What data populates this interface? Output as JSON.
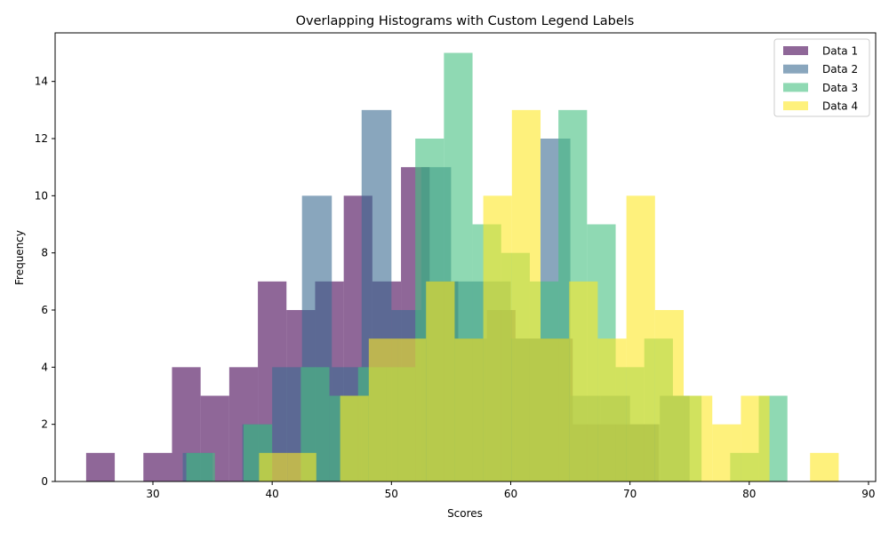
{
  "chart_data": {
    "type": "bar",
    "title": "Overlapping Histograms with Custom Legend Labels",
    "xlabel": "Scores",
    "ylabel": "Frequency",
    "xlim": [
      21.8,
      90.6
    ],
    "ylim": [
      0,
      15.7
    ],
    "xticks": [
      30,
      40,
      50,
      60,
      70,
      80,
      90
    ],
    "yticks": [
      0,
      2,
      4,
      6,
      8,
      10,
      12,
      14
    ],
    "legend_position": "top-right",
    "bar_alpha": 0.6,
    "series": [
      {
        "name": "Data 1",
        "color": "#440154",
        "bins": [
          {
            "x0": 24.4,
            "x1": 26.8,
            "y": 1
          },
          {
            "x0": 29.2,
            "x1": 31.6,
            "y": 1
          },
          {
            "x0": 31.6,
            "x1": 34.0,
            "y": 4
          },
          {
            "x0": 34.0,
            "x1": 36.4,
            "y": 3
          },
          {
            "x0": 36.4,
            "x1": 38.8,
            "y": 4
          },
          {
            "x0": 38.8,
            "x1": 41.2,
            "y": 7
          },
          {
            "x0": 41.2,
            "x1": 43.6,
            "y": 6
          },
          {
            "x0": 43.6,
            "x1": 46.0,
            "y": 7
          },
          {
            "x0": 46.0,
            "x1": 48.4,
            "y": 10
          },
          {
            "x0": 48.4,
            "x1": 50.8,
            "y": 7
          },
          {
            "x0": 50.8,
            "x1": 53.2,
            "y": 11
          },
          {
            "x0": 53.2,
            "x1": 55.6,
            "y": 7
          },
          {
            "x0": 55.6,
            "x1": 58.0,
            "y": 5
          },
          {
            "x0": 58.0,
            "x1": 60.4,
            "y": 6
          },
          {
            "x0": 60.4,
            "x1": 62.8,
            "y": 5
          },
          {
            "x0": 62.8,
            "x1": 65.2,
            "y": 5
          },
          {
            "x0": 65.2,
            "x1": 67.6,
            "y": 2
          },
          {
            "x0": 67.6,
            "x1": 70.0,
            "y": 2
          },
          {
            "x0": 70.0,
            "x1": 72.4,
            "y": 2
          }
        ]
      },
      {
        "name": "Data 2",
        "color": "#3b6b91",
        "bins": [
          {
            "x0": 32.5,
            "x1": 35.0,
            "y": 1
          },
          {
            "x0": 37.5,
            "x1": 40.0,
            "y": 2
          },
          {
            "x0": 40.0,
            "x1": 42.5,
            "y": 4
          },
          {
            "x0": 42.5,
            "x1": 45.0,
            "y": 10
          },
          {
            "x0": 45.0,
            "x1": 47.5,
            "y": 4
          },
          {
            "x0": 47.5,
            "x1": 50.0,
            "y": 13
          },
          {
            "x0": 50.0,
            "x1": 52.5,
            "y": 6
          },
          {
            "x0": 52.5,
            "x1": 55.0,
            "y": 11
          },
          {
            "x0": 55.0,
            "x1": 57.5,
            "y": 7
          },
          {
            "x0": 57.5,
            "x1": 60.0,
            "y": 7
          },
          {
            "x0": 60.0,
            "x1": 62.5,
            "y": 5
          },
          {
            "x0": 62.5,
            "x1": 65.0,
            "y": 12
          },
          {
            "x0": 65.0,
            "x1": 67.5,
            "y": 3
          },
          {
            "x0": 67.5,
            "x1": 70.0,
            "y": 3
          },
          {
            "x0": 70.0,
            "x1": 72.5,
            "y": 2
          },
          {
            "x0": 72.5,
            "x1": 75.0,
            "y": 3
          }
        ]
      },
      {
        "name": "Data 3",
        "color": "#44bf80",
        "bins": [
          {
            "x0": 32.8,
            "x1": 35.2,
            "y": 1
          },
          {
            "x0": 37.6,
            "x1": 40.0,
            "y": 2
          },
          {
            "x0": 42.4,
            "x1": 44.8,
            "y": 4
          },
          {
            "x0": 44.8,
            "x1": 47.2,
            "y": 3
          },
          {
            "x0": 47.2,
            "x1": 49.6,
            "y": 4
          },
          {
            "x0": 49.6,
            "x1": 52.0,
            "y": 4
          },
          {
            "x0": 52.0,
            "x1": 54.4,
            "y": 12
          },
          {
            "x0": 54.4,
            "x1": 56.8,
            "y": 15
          },
          {
            "x0": 56.8,
            "x1": 59.2,
            "y": 9
          },
          {
            "x0": 59.2,
            "x1": 61.6,
            "y": 8
          },
          {
            "x0": 61.6,
            "x1": 64.0,
            "y": 7
          },
          {
            "x0": 64.0,
            "x1": 66.4,
            "y": 13
          },
          {
            "x0": 66.4,
            "x1": 68.8,
            "y": 9
          },
          {
            "x0": 68.8,
            "x1": 71.2,
            "y": 4
          },
          {
            "x0": 71.2,
            "x1": 73.6,
            "y": 5
          },
          {
            "x0": 73.6,
            "x1": 76.0,
            "y": 3
          },
          {
            "x0": 78.4,
            "x1": 80.8,
            "y": 1
          },
          {
            "x0": 80.8,
            "x1": 83.2,
            "y": 3
          }
        ]
      },
      {
        "name": "Data 4",
        "color": "#fde725",
        "bins": [
          {
            "x0": 38.9,
            "x1": 41.3,
            "y": 1
          },
          {
            "x0": 41.3,
            "x1": 43.7,
            "y": 1
          },
          {
            "x0": 45.7,
            "x1": 48.1,
            "y": 3
          },
          {
            "x0": 48.1,
            "x1": 50.5,
            "y": 5
          },
          {
            "x0": 50.5,
            "x1": 52.9,
            "y": 5
          },
          {
            "x0": 52.9,
            "x1": 55.3,
            "y": 7
          },
          {
            "x0": 55.3,
            "x1": 57.7,
            "y": 5
          },
          {
            "x0": 57.7,
            "x1": 60.1,
            "y": 10
          },
          {
            "x0": 60.1,
            "x1": 62.5,
            "y": 13
          },
          {
            "x0": 62.5,
            "x1": 64.9,
            "y": 5
          },
          {
            "x0": 64.9,
            "x1": 67.3,
            "y": 7
          },
          {
            "x0": 67.3,
            "x1": 69.7,
            "y": 5
          },
          {
            "x0": 69.7,
            "x1": 72.1,
            "y": 10
          },
          {
            "x0": 72.1,
            "x1": 74.5,
            "y": 6
          },
          {
            "x0": 74.5,
            "x1": 76.9,
            "y": 3
          },
          {
            "x0": 76.9,
            "x1": 79.3,
            "y": 2
          },
          {
            "x0": 79.3,
            "x1": 81.7,
            "y": 3
          },
          {
            "x0": 85.1,
            "x1": 87.5,
            "y": 1
          }
        ]
      }
    ]
  }
}
